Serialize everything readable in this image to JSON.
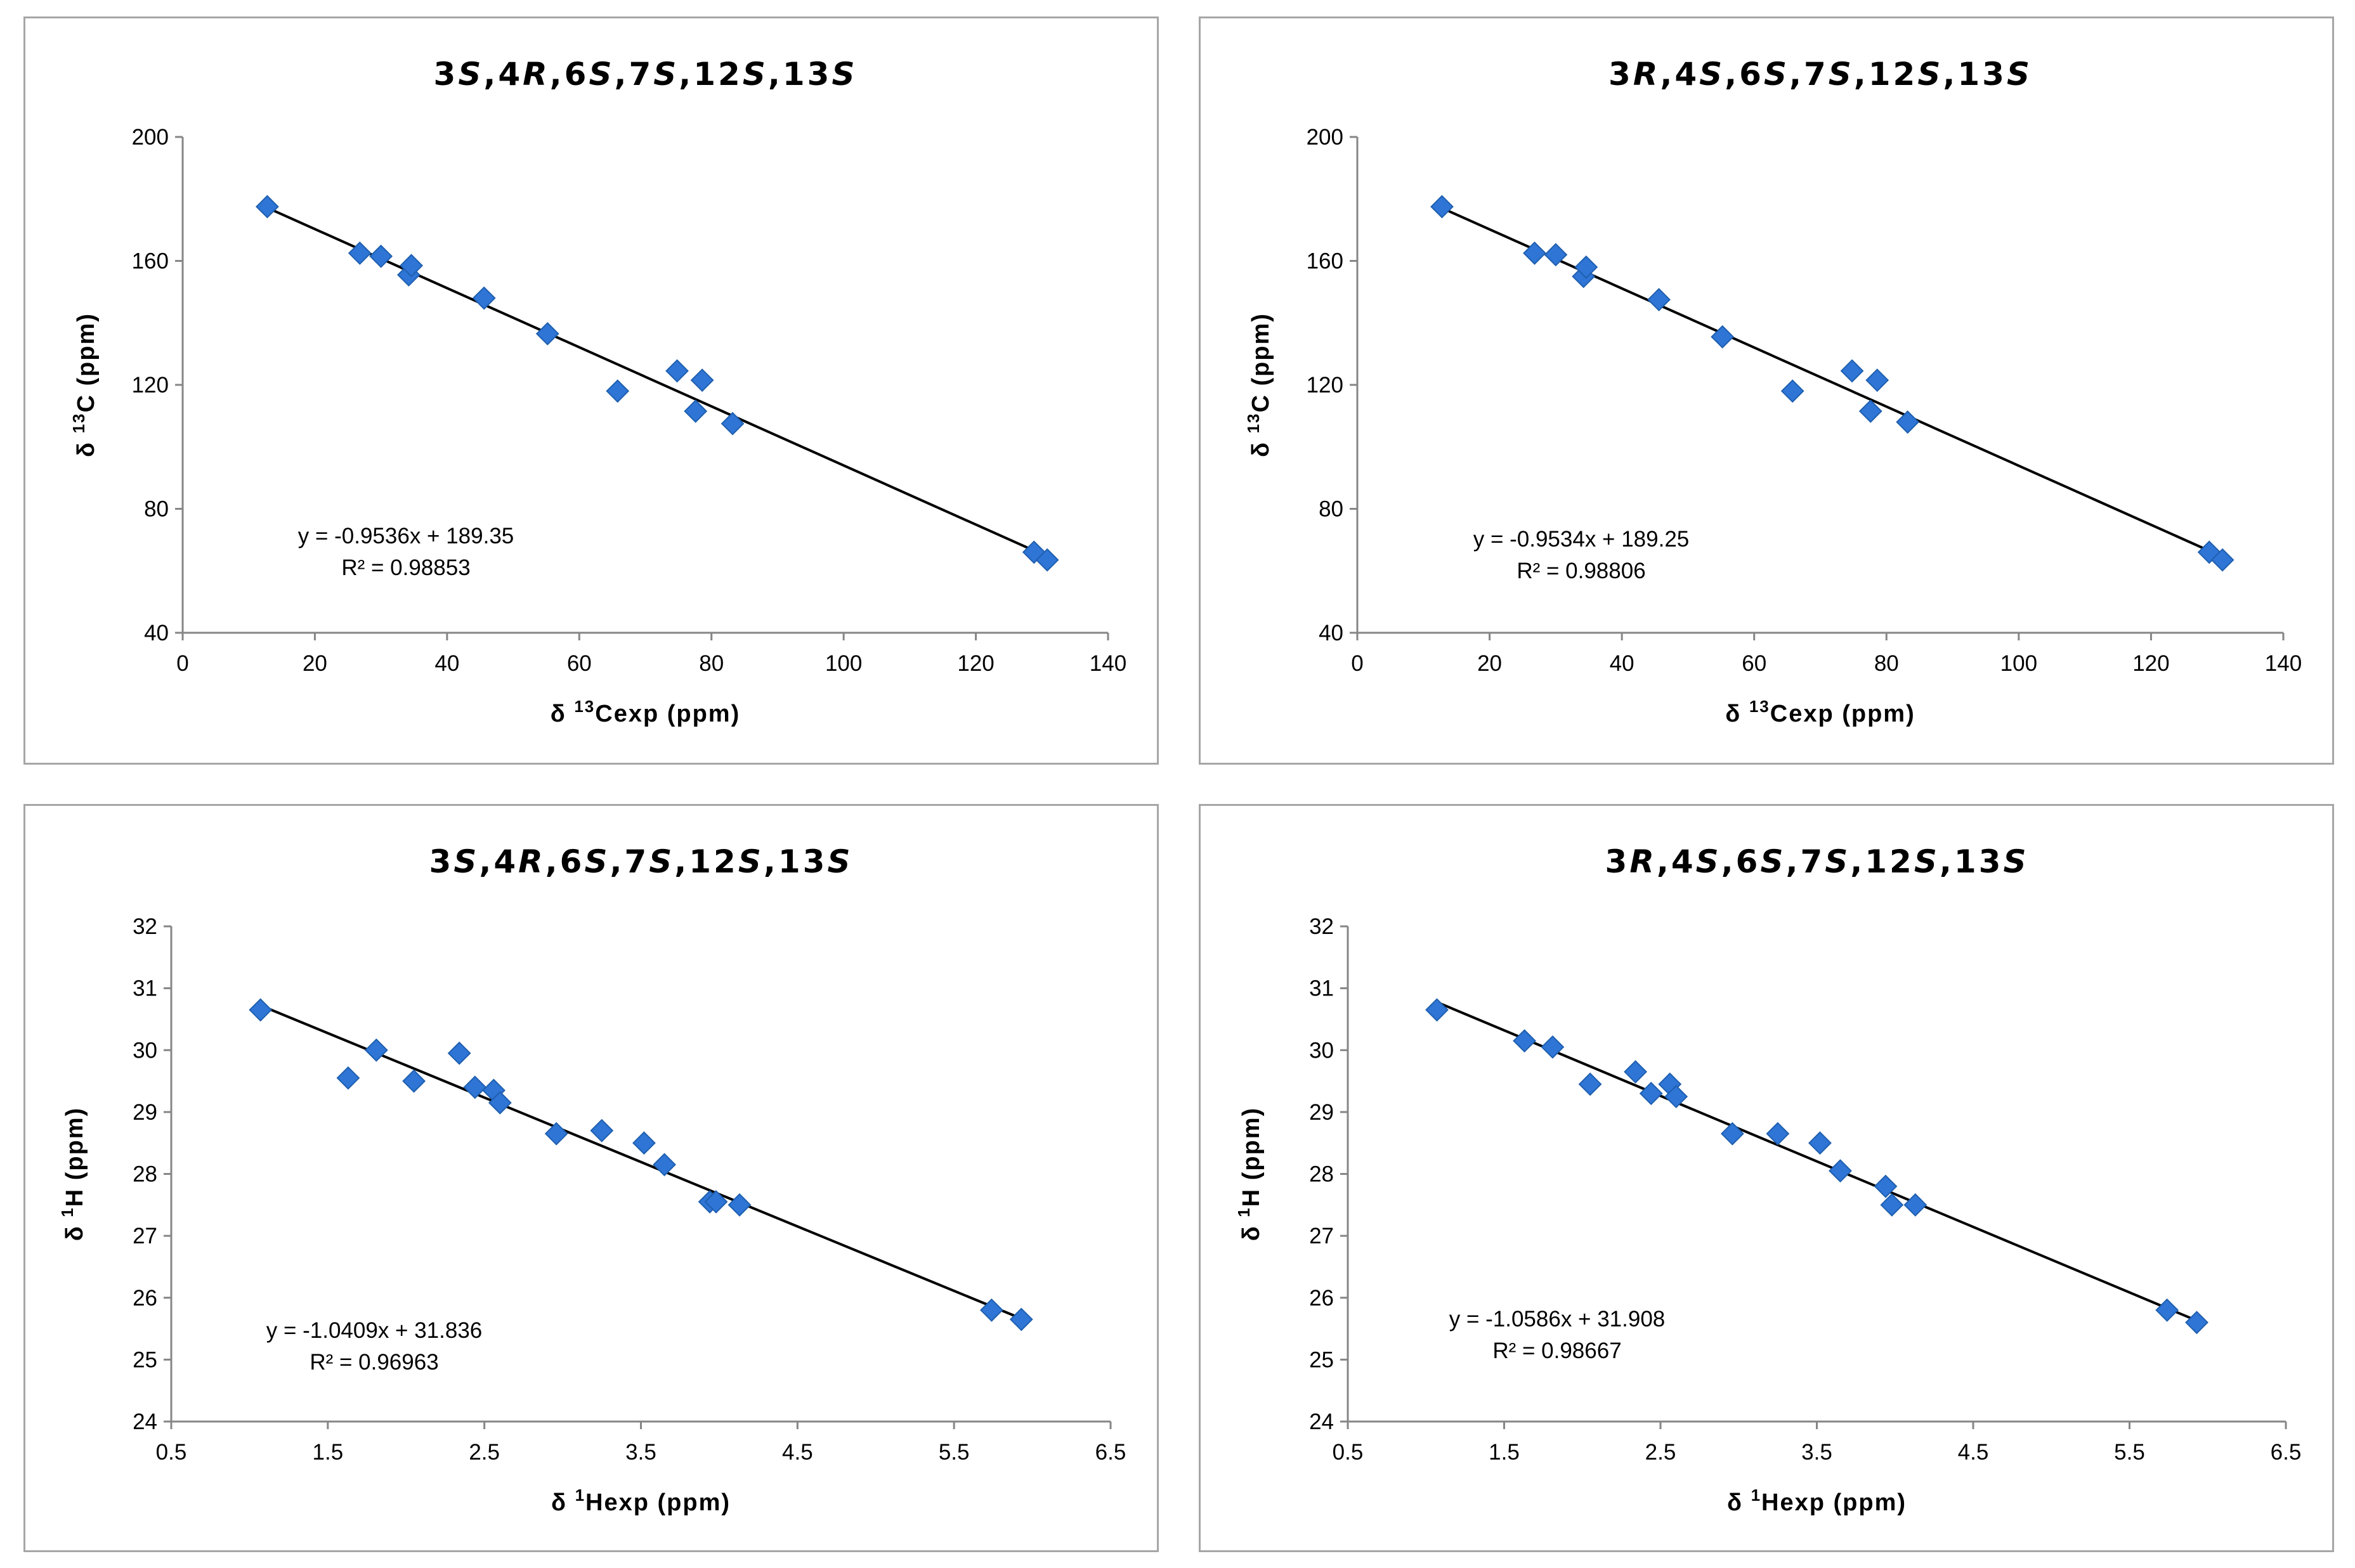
{
  "colors": {
    "marker": "#2e75d6",
    "marker_edge": "#1f5fae",
    "trendline": "#000000",
    "axis": "#868686",
    "border": "#a6a6a6"
  },
  "chart_data": [
    {
      "type": "scatter",
      "title": "3S,4R,6S,7S,12S,13S",
      "xlabel": "δ 13Cexp (ppm)",
      "ylabel": "δ 13C (ppm)",
      "xlim": [
        0,
        140
      ],
      "ylim": [
        40,
        200
      ],
      "xticks": [
        "0",
        "20",
        "40",
        "60",
        "80",
        "100",
        "120",
        "140"
      ],
      "yticks": [
        "40",
        "80",
        "120",
        "160",
        "200"
      ],
      "trendline": {
        "slope": -0.9536,
        "intercept": 189.35,
        "x_range": [
          12.8,
          130.8
        ]
      },
      "equation": "y = -0.9536x + 189.35",
      "r_squared": "R² = 0.98853",
      "legend": "none",
      "x": [
        12.8,
        26.8,
        30.0,
        34.2,
        34.6,
        45.6,
        55.2,
        65.8,
        74.8,
        77.6,
        78.6,
        83.2,
        128.8,
        130.8
      ],
      "y": [
        177.5,
        162.5,
        161.5,
        155.5,
        158.5,
        148.0,
        136.5,
        118.0,
        124.5,
        111.5,
        121.5,
        107.5,
        66.0,
        63.5
      ]
    },
    {
      "type": "scatter",
      "title": "3R,4S,6S,7S,12S,13S",
      "xlabel": "δ 13Cexp (ppm)",
      "ylabel": "δ 13C (ppm)",
      "xlim": [
        0,
        140
      ],
      "ylim": [
        40,
        200
      ],
      "xticks": [
        "0",
        "20",
        "40",
        "60",
        "80",
        "100",
        "120",
        "140"
      ],
      "yticks": [
        "40",
        "80",
        "120",
        "160",
        "200"
      ],
      "trendline": {
        "slope": -0.9534,
        "intercept": 189.25,
        "x_range": [
          12.8,
          130.8
        ]
      },
      "equation": "y = -0.9534x + 189.25",
      "r_squared": "R² = 0.98806",
      "legend": "none",
      "x": [
        12.8,
        26.8,
        30.0,
        34.2,
        34.6,
        45.6,
        55.2,
        65.8,
        74.8,
        77.6,
        78.6,
        83.2,
        128.8,
        130.8
      ],
      "y": [
        177.5,
        162.5,
        162.0,
        155.0,
        158.0,
        147.5,
        135.5,
        118.0,
        124.5,
        111.5,
        121.5,
        108.0,
        66.0,
        63.5
      ]
    },
    {
      "type": "scatter",
      "title": "3S,4R,6S,7S,12S,13S",
      "xlabel": "δ 1Hexp (ppm)",
      "ylabel": "δ 1H (ppm)",
      "xlim": [
        0.5,
        6.5
      ],
      "ylim": [
        24,
        32
      ],
      "xticks": [
        "0.5",
        "1.5",
        "2.5",
        "3.5",
        "4.5",
        "5.5",
        "6.5"
      ],
      "yticks": [
        "24",
        "25",
        "26",
        "27",
        "28",
        "29",
        "30",
        "31",
        "32"
      ],
      "trendline": {
        "slope": -1.0409,
        "intercept": 31.836,
        "x_range": [
          1.07,
          5.93
        ]
      },
      "equation": "y = -1.0409x + 31.836",
      "r_squared": "R² = 0.96963",
      "legend": "none",
      "x": [
        1.07,
        1.63,
        1.81,
        2.05,
        2.34,
        2.44,
        2.56,
        2.6,
        2.96,
        3.25,
        3.52,
        3.65,
        3.94,
        3.98,
        4.13,
        5.74,
        5.93
      ],
      "y": [
        30.65,
        29.55,
        30.0,
        29.5,
        29.95,
        29.4,
        29.35,
        29.15,
        28.65,
        28.7,
        28.5,
        28.15,
        27.55,
        27.55,
        27.5,
        25.8,
        25.65
      ]
    },
    {
      "type": "scatter",
      "title": "3R,4S,6S,7S,12S,13S",
      "xlabel": "δ 1Hexp (ppm)",
      "ylabel": "δ 1H (ppm)",
      "xlim": [
        0.5,
        6.5
      ],
      "ylim": [
        24,
        32
      ],
      "xticks": [
        "0.5",
        "1.5",
        "2.5",
        "3.5",
        "4.5",
        "5.5",
        "6.5"
      ],
      "yticks": [
        "24",
        "25",
        "26",
        "27",
        "28",
        "29",
        "30",
        "31",
        "32"
      ],
      "trendline": {
        "slope": -1.0586,
        "intercept": 31.908,
        "x_range": [
          1.07,
          5.93
        ]
      },
      "equation": "y = -1.0586x + 31.908",
      "r_squared": "R² = 0.98667",
      "legend": "none",
      "x": [
        1.07,
        1.63,
        1.81,
        2.05,
        2.34,
        2.44,
        2.56,
        2.6,
        2.96,
        3.25,
        3.52,
        3.65,
        3.94,
        3.98,
        4.13,
        5.74,
        5.93
      ],
      "y": [
        30.65,
        30.15,
        30.05,
        29.45,
        29.65,
        29.3,
        29.45,
        29.25,
        28.65,
        28.65,
        28.5,
        28.05,
        27.8,
        27.5,
        27.5,
        25.8,
        25.6
      ]
    }
  ]
}
